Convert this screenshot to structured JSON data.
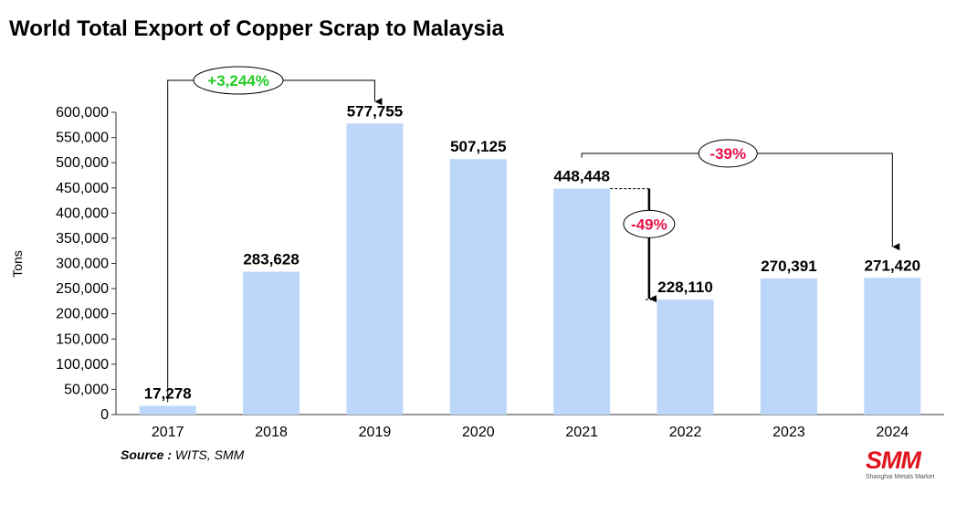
{
  "title": "World Total Export of Copper Scrap to Malaysia",
  "source": {
    "label": "Source :",
    "text": "WITS, SMM"
  },
  "logo": {
    "text": "SMM",
    "subtext": "Shanghai Metals Market"
  },
  "colors": {
    "bar": "#bdd7fb",
    "positive": "#22cc22",
    "negative": "#e8104a",
    "axis": "#333333"
  },
  "chart_data": {
    "type": "bar",
    "title": "World Total Export of Copper Scrap to Malaysia",
    "xlabel": "",
    "ylabel": "Tons",
    "categories": [
      "2017",
      "2018",
      "2019",
      "2020",
      "2021",
      "2022",
      "2023",
      "2024"
    ],
    "values": [
      17278,
      283628,
      577755,
      507125,
      448448,
      228110,
      270391,
      271420
    ],
    "value_labels": [
      "17,278",
      "283,628",
      "577,755",
      "507,125",
      "448,448",
      "228,110",
      "270,391",
      "271,420"
    ],
    "ylim": [
      0,
      600000
    ],
    "yticks": [
      0,
      50000,
      100000,
      150000,
      200000,
      250000,
      300000,
      350000,
      400000,
      450000,
      500000,
      550000,
      600000
    ],
    "ytick_labels": [
      "0",
      "50,000",
      "100,000",
      "150,000",
      "200,000",
      "250,000",
      "300,000",
      "350,000",
      "400,000",
      "450,000",
      "500,000",
      "550,000",
      "600,000"
    ],
    "grid": false,
    "annotations": [
      {
        "text": "+3,244%",
        "from": "2017",
        "to": "2019",
        "kind": "positive"
      },
      {
        "text": "-39%",
        "from": "2021",
        "to": "2024",
        "kind": "negative"
      },
      {
        "text": "-49%",
        "from": "2021",
        "to": "2022",
        "kind": "negative"
      }
    ]
  }
}
